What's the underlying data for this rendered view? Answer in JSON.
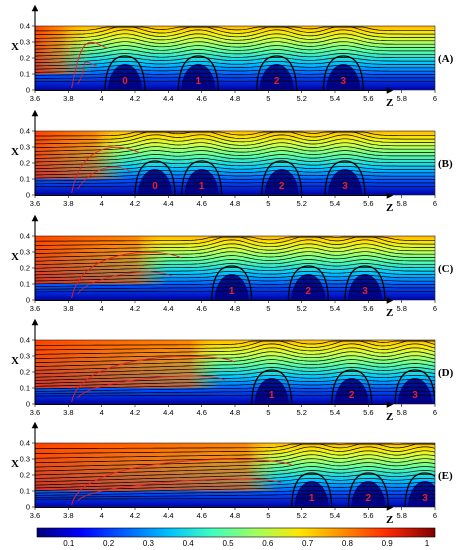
{
  "chart_data": {
    "type": "heatmap",
    "colormap": "jet",
    "x_axis": {
      "label": "Z",
      "range": [
        3.6,
        6.0
      ],
      "ticks": [
        "3.6",
        "3.8",
        "4",
        "4.2",
        "4.4",
        "4.6",
        "4.8",
        "5",
        "5.2",
        "5.4",
        "5.6",
        "5.8",
        "6"
      ]
    },
    "y_axis": {
      "label": "X",
      "range": [
        0,
        0.4
      ],
      "ticks": [
        "0",
        "0.1",
        "0.2",
        "0.3",
        "0.4"
      ]
    },
    "colorbar": {
      "range": [
        0,
        1
      ],
      "ticks": [
        "0.1",
        "0.2",
        "0.3",
        "0.4",
        "0.5",
        "0.6",
        "0.7",
        "0.8",
        "0.9",
        "1"
      ]
    },
    "panels": [
      {
        "label": "(A)",
        "front_z": 3.95,
        "regions": [
          {
            "text": "0",
            "z": 4.14
          },
          {
            "text": "1",
            "z": 4.58
          },
          {
            "text": "2",
            "z": 5.05
          },
          {
            "text": "3",
            "z": 5.45
          }
        ]
      },
      {
        "label": "(B)",
        "front_z": 4.15,
        "regions": [
          {
            "text": "0",
            "z": 4.32
          },
          {
            "text": "1",
            "z": 4.6
          },
          {
            "text": "2",
            "z": 5.08
          },
          {
            "text": "3",
            "z": 5.46
          }
        ]
      },
      {
        "label": "(C)",
        "front_z": 4.4,
        "regions": [
          {
            "text": "1",
            "z": 4.78
          },
          {
            "text": "2",
            "z": 5.24
          },
          {
            "text": "3",
            "z": 5.58
          }
        ]
      },
      {
        "label": "(D)",
        "front_z": 4.72,
        "regions": [
          {
            "text": "1",
            "z": 5.02
          },
          {
            "text": "2",
            "z": 5.5
          },
          {
            "text": "3",
            "z": 5.88
          }
        ]
      },
      {
        "label": "(E)",
        "front_z": 5.06,
        "regions": [
          {
            "text": "1",
            "z": 5.26
          },
          {
            "text": "2",
            "z": 5.6
          },
          {
            "text": "3",
            "z": 5.94
          }
        ]
      }
    ]
  }
}
